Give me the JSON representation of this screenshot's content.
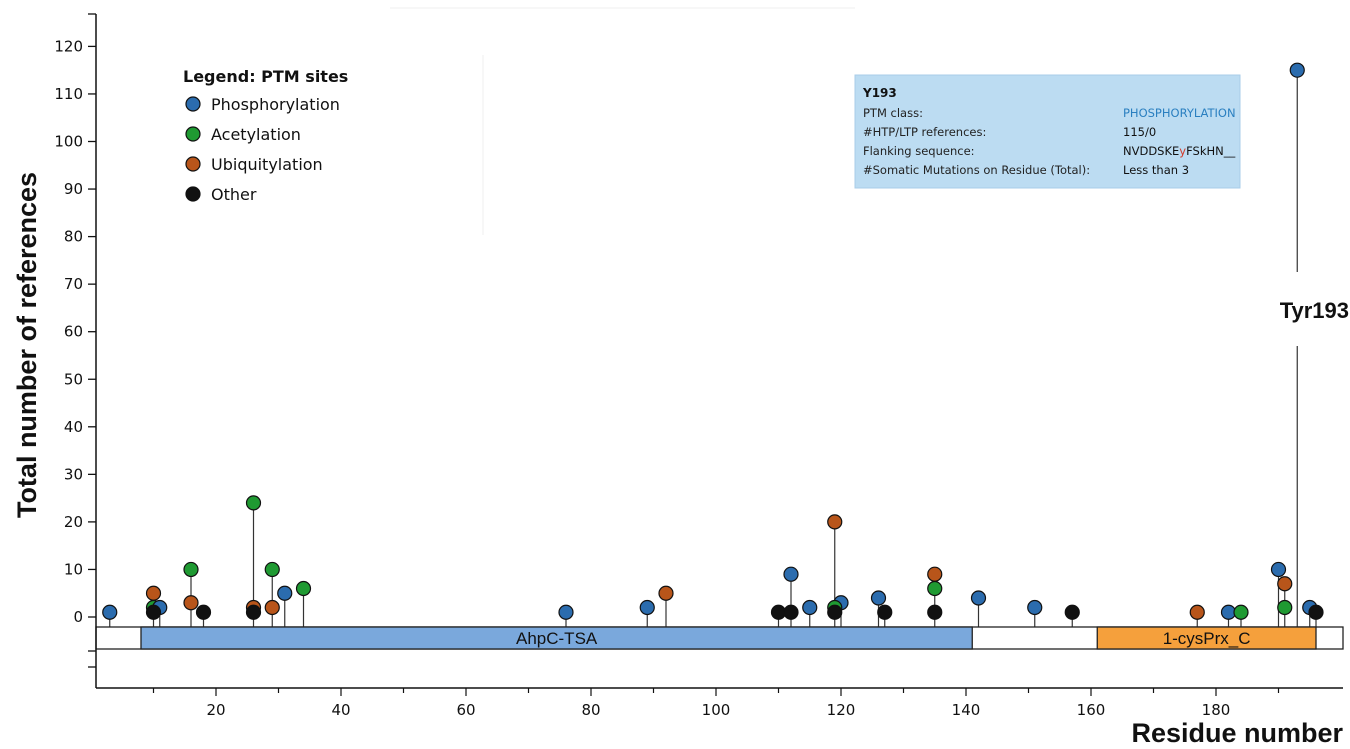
{
  "chart_data": {
    "type": "lollipop",
    "title": "",
    "xlabel": "Residue number",
    "ylabel": "Total number of references",
    "xlim": [
      0,
      198
    ],
    "ylim": [
      0,
      120
    ],
    "x_ticks": [
      20,
      40,
      60,
      80,
      100,
      120,
      140,
      160,
      180
    ],
    "y_ticks": [
      0,
      10,
      20,
      30,
      40,
      50,
      60,
      70,
      80,
      90,
      100,
      110,
      120
    ],
    "legend": {
      "title": "Legend: PTM sites",
      "position": "top-left",
      "entries": [
        {
          "label": "Phosphorylation",
          "color": "#2b6cae"
        },
        {
          "label": "Acetylation",
          "color": "#1f9a32"
        },
        {
          "label": "Ubiquitylation",
          "color": "#b8551a"
        },
        {
          "label": "Other",
          "color": "#111111"
        }
      ]
    },
    "sites": [
      {
        "residue": 3,
        "count": 1,
        "type": "Phosphorylation"
      },
      {
        "residue": 10,
        "count": 5,
        "type": "Ubiquitylation"
      },
      {
        "residue": 10,
        "count": 2,
        "type": "Acetylation"
      },
      {
        "residue": 10,
        "count": 1,
        "type": "Other"
      },
      {
        "residue": 11,
        "count": 2,
        "type": "Phosphorylation"
      },
      {
        "residue": 16,
        "count": 10,
        "type": "Acetylation"
      },
      {
        "residue": 16,
        "count": 3,
        "type": "Ubiquitylation"
      },
      {
        "residue": 18,
        "count": 1,
        "type": "Other"
      },
      {
        "residue": 26,
        "count": 24,
        "type": "Acetylation"
      },
      {
        "residue": 26,
        "count": 2,
        "type": "Ubiquitylation"
      },
      {
        "residue": 26,
        "count": 1,
        "type": "Other"
      },
      {
        "residue": 29,
        "count": 10,
        "type": "Acetylation"
      },
      {
        "residue": 29,
        "count": 2,
        "type": "Ubiquitylation"
      },
      {
        "residue": 31,
        "count": 5,
        "type": "Phosphorylation"
      },
      {
        "residue": 34,
        "count": 6,
        "type": "Acetylation"
      },
      {
        "residue": 76,
        "count": 1,
        "type": "Phosphorylation"
      },
      {
        "residue": 89,
        "count": 2,
        "type": "Phosphorylation"
      },
      {
        "residue": 92,
        "count": 5,
        "type": "Ubiquitylation"
      },
      {
        "residue": 110,
        "count": 1,
        "type": "Other"
      },
      {
        "residue": 112,
        "count": 9,
        "type": "Phosphorylation"
      },
      {
        "residue": 112,
        "count": 1,
        "type": "Other"
      },
      {
        "residue": 115,
        "count": 2,
        "type": "Phosphorylation"
      },
      {
        "residue": 119,
        "count": 20,
        "type": "Ubiquitylation"
      },
      {
        "residue": 119,
        "count": 2,
        "type": "Acetylation"
      },
      {
        "residue": 119,
        "count": 1,
        "type": "Other"
      },
      {
        "residue": 120,
        "count": 3,
        "type": "Phosphorylation"
      },
      {
        "residue": 126,
        "count": 4,
        "type": "Phosphorylation"
      },
      {
        "residue": 127,
        "count": 1,
        "type": "Other"
      },
      {
        "residue": 135,
        "count": 9,
        "type": "Ubiquitylation"
      },
      {
        "residue": 135,
        "count": 6,
        "type": "Acetylation"
      },
      {
        "residue": 135,
        "count": 1,
        "type": "Other"
      },
      {
        "residue": 142,
        "count": 4,
        "type": "Phosphorylation"
      },
      {
        "residue": 151,
        "count": 2,
        "type": "Phosphorylation"
      },
      {
        "residue": 157,
        "count": 1,
        "type": "Other"
      },
      {
        "residue": 177,
        "count": 1,
        "type": "Ubiquitylation"
      },
      {
        "residue": 182,
        "count": 1,
        "type": "Phosphorylation"
      },
      {
        "residue": 184,
        "count": 1,
        "type": "Acetylation"
      },
      {
        "residue": 190,
        "count": 10,
        "type": "Phosphorylation"
      },
      {
        "residue": 191,
        "count": 7,
        "type": "Ubiquitylation"
      },
      {
        "residue": 191,
        "count": 2,
        "type": "Acetylation"
      },
      {
        "residue": 193,
        "count": 115,
        "type": "Phosphorylation"
      },
      {
        "residue": 195,
        "count": 2,
        "type": "Phosphorylation"
      },
      {
        "residue": 196,
        "count": 1,
        "type": "Other"
      }
    ],
    "domains": [
      {
        "name": "AhpC-TSA",
        "start": 8,
        "end": 141,
        "color": "#7aa8dc"
      },
      {
        "name": "1-cysPrx_C",
        "start": 161,
        "end": 196,
        "color": "#f5a03c"
      }
    ],
    "annotations": [
      {
        "text": "Tyr193",
        "residue": 193
      }
    ],
    "tooltip": {
      "title": "Y193",
      "rows": [
        {
          "key": "PTM class:",
          "value": "PHOSPHORYLATION"
        },
        {
          "key": "#HTP/LTP references:",
          "value": "115/0"
        },
        {
          "key": "Flanking sequence:",
          "value_before": "NVDDSKE",
          "value_highlight": "y",
          "value_after": "FSkHN__"
        },
        {
          "key": "#Somatic Mutations on Residue (Total):",
          "value": "Less than 3"
        }
      ]
    }
  }
}
